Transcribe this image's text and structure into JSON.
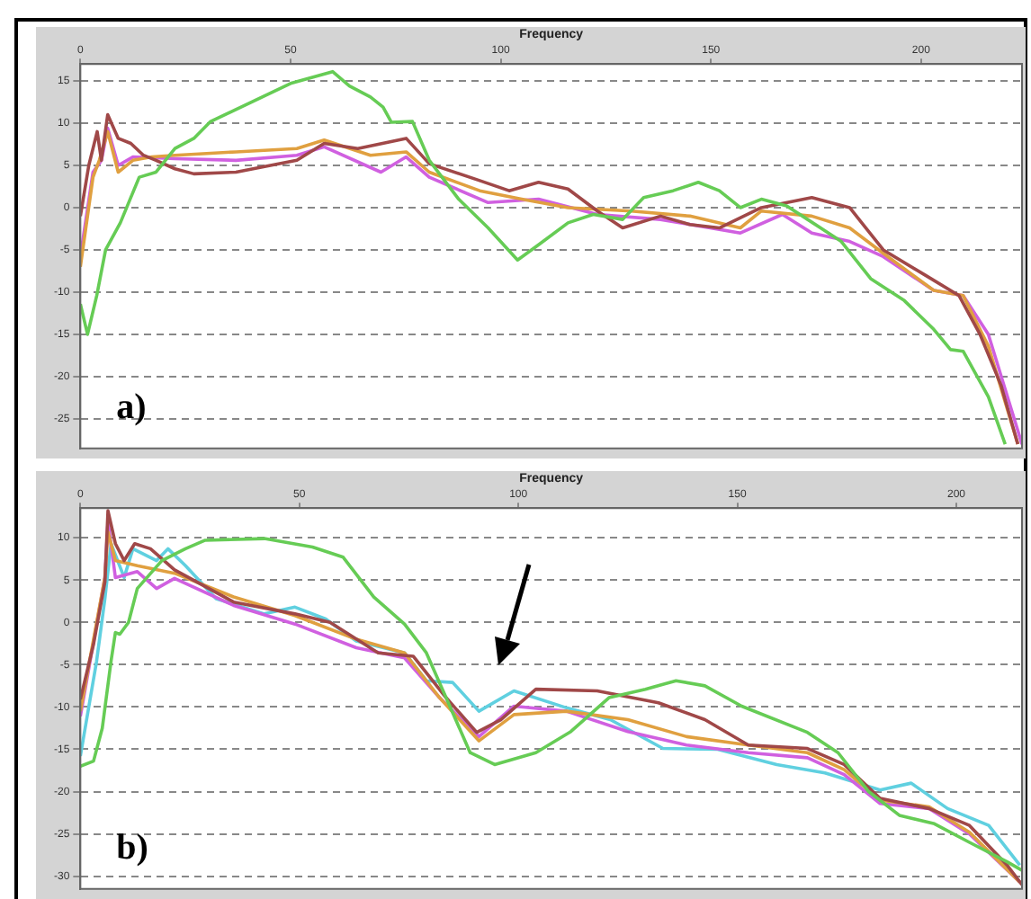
{
  "chart_data": [
    {
      "type": "line",
      "xlabel": "Frequency",
      "xlim": [
        0,
        224
      ],
      "xticks": [
        0,
        50,
        100,
        150,
        200
      ],
      "ylim": [
        -28.5,
        17
      ],
      "yticks": [
        15,
        10,
        5,
        0,
        -5,
        -10,
        -15,
        -20,
        -25
      ],
      "grid": "y",
      "legend": false,
      "marker": "none",
      "line_style": "solid",
      "annotations": [
        "a)"
      ],
      "series": [
        {
          "color": "#66cc55",
          "x": [
            0,
            1.7,
            3.9,
            6,
            9.5,
            14,
            18,
            22.5,
            27,
            31,
            50,
            60,
            64,
            69,
            72,
            74,
            79,
            83,
            90,
            97,
            104,
            109,
            116,
            122,
            129,
            134,
            141,
            147,
            152,
            157,
            162,
            168,
            173,
            181,
            188,
            196,
            203,
            207,
            210,
            216,
            220
          ],
          "values": [
            -11.4,
            -15,
            -10.4,
            -5,
            -1.8,
            3.6,
            4.2,
            7,
            8.2,
            10.2,
            14.7,
            16.1,
            14.4,
            13.1,
            11.9,
            10.1,
            10.2,
            5.6,
            1,
            -2.4,
            -6.2,
            -4.4,
            -1.8,
            -0.8,
            -1.4,
            1.2,
            2,
            3,
            2,
            0,
            1,
            0.2,
            -1.4,
            -4,
            -8.4,
            -11,
            -14.4,
            -16.8,
            -17,
            -22.4,
            -28
          ]
        },
        {
          "color": "#a04848",
          "x": [
            0,
            2,
            4,
            5,
            6.5,
            9,
            12,
            15,
            18,
            22.5,
            27,
            37,
            51.5,
            58,
            66,
            77.5,
            83,
            95,
            102,
            109,
            116,
            123,
            129,
            138,
            145,
            152,
            162,
            174,
            183,
            191,
            201,
            209,
            214,
            219,
            223
          ],
          "values": [
            -1,
            5,
            9,
            5.6,
            11,
            8.2,
            7.6,
            6.2,
            5.6,
            4.6,
            4,
            4.2,
            5.6,
            7.6,
            7,
            8.2,
            5.2,
            3.2,
            2,
            3,
            2.2,
            -0.4,
            -2.4,
            -1,
            -2,
            -2.4,
            0,
            1.2,
            0,
            -5,
            -8,
            -10.4,
            -15,
            -21,
            -28
          ]
        },
        {
          "color": "#e0a040",
          "x": [
            0,
            3,
            4.5,
            6.5,
            9,
            12.5,
            17,
            22.5,
            37,
            51.5,
            58,
            69,
            77.5,
            83,
            95,
            105,
            116,
            131,
            145,
            157,
            162,
            174,
            183,
            191,
            203,
            210,
            216,
            223
          ],
          "values": [
            -7,
            3.6,
            5.6,
            9,
            4.2,
            5.6,
            6,
            6.2,
            6.6,
            7,
            8,
            6.2,
            6.6,
            4.2,
            2,
            1,
            0,
            -0.4,
            -1,
            -2.4,
            -0.4,
            -1,
            -2.4,
            -5.4,
            -9.8,
            -10.4,
            -16.4,
            -28
          ]
        },
        {
          "color": "#d060e0",
          "x": [
            0,
            3,
            5,
            6.5,
            9,
            12.5,
            22.5,
            37,
            51.5,
            58,
            71.5,
            77.5,
            83,
            97,
            109,
            123,
            138,
            157,
            167,
            174,
            183,
            191,
            203,
            210,
            216,
            224
          ],
          "values": [
            -5.8,
            4.2,
            5.6,
            9.4,
            5,
            6,
            5.8,
            5.6,
            6.2,
            7.2,
            4.2,
            6,
            3.6,
            0.6,
            1,
            -0.8,
            -1.4,
            -3,
            -0.8,
            -3,
            -4,
            -5.8,
            -9.8,
            -10.4,
            -15,
            -28
          ]
        }
      ]
    },
    {
      "type": "line",
      "xlabel": "Frequency",
      "xlim": [
        0,
        215
      ],
      "xticks": [
        0,
        50,
        100,
        150,
        200
      ],
      "ylim": [
        -31.5,
        13.5
      ],
      "yticks": [
        10,
        5,
        0,
        -5,
        -10,
        -15,
        -20,
        -25,
        -30
      ],
      "grid": "y",
      "legend": false,
      "marker": "none",
      "line_style": "solid",
      "annotations": [
        "b)"
      ],
      "series": [
        {
          "color": "#66cc55",
          "x": [
            0,
            3,
            5,
            7,
            8,
            9,
            11,
            13,
            18.6,
            24,
            28.5,
            42,
            53,
            60,
            67,
            74,
            79,
            83.5,
            89,
            94.6,
            104,
            112,
            120.7,
            129,
            136,
            142.6,
            151,
            166,
            173,
            180,
            187,
            195,
            203,
            211.6,
            215
          ],
          "values": [
            -17,
            -16.4,
            -12.5,
            -4.6,
            -1.2,
            -1.4,
            0,
            4,
            7.3,
            8.7,
            9.7,
            9.9,
            8.9,
            7.7,
            3,
            -0.2,
            -3.6,
            -8.9,
            -15.4,
            -16.8,
            -15.4,
            -12.9,
            -8.9,
            -7.9,
            -6.9,
            -7.5,
            -9.9,
            -13,
            -15.4,
            -20,
            -22.8,
            -23.8,
            -26,
            -28.3,
            -29.3
          ]
        },
        {
          "color": "#a04848",
          "x": [
            0,
            3,
            5.6,
            6.3,
            8,
            10,
            12.4,
            16,
            21.5,
            35,
            49,
            57,
            68,
            76,
            83.5,
            90.5,
            96,
            104,
            118,
            132,
            142.6,
            152.5,
            166,
            174.4,
            182.6,
            193.8,
            203,
            211.6,
            215
          ],
          "values": [
            -9.1,
            -2.6,
            4.8,
            13.2,
            9.3,
            7.3,
            9.3,
            8.7,
            6.2,
            2.4,
            1,
            0,
            -3.6,
            -4,
            -8.9,
            -13,
            -11.5,
            -7.9,
            -8.1,
            -9.5,
            -11.5,
            -14.5,
            -14.9,
            -16.8,
            -20.8,
            -22,
            -24,
            -28.7,
            -31
          ]
        },
        {
          "color": "#e0a040",
          "x": [
            0,
            5.6,
            6.3,
            8,
            13,
            21.5,
            35,
            49,
            63,
            74,
            82,
            91,
            99,
            111,
            125,
            138.4,
            152.5,
            166,
            174.4,
            182.6,
            193.8,
            203,
            214.5
          ],
          "values": [
            -10.5,
            5.3,
            10.7,
            7.3,
            6.7,
            5.8,
            3,
            0.8,
            -2,
            -3.6,
            -8.9,
            -14,
            -10.9,
            -10.5,
            -11.5,
            -13.5,
            -14.5,
            -15.4,
            -17.4,
            -21,
            -21.8,
            -24.8,
            -30.7
          ]
        },
        {
          "color": "#d060e0",
          "x": [
            0,
            5.6,
            6.3,
            8,
            13,
            17.4,
            21.5,
            35,
            49,
            63,
            74,
            82,
            91,
            99,
            111,
            125,
            138.4,
            152.5,
            166,
            174.4,
            182.6,
            193.8,
            203,
            214.5
          ],
          "values": [
            -11.1,
            5.3,
            11.9,
            5.3,
            6,
            4,
            5.2,
            2,
            -0.2,
            -3,
            -4.2,
            -8.9,
            -13.5,
            -9.9,
            -10.5,
            -12.9,
            -14.5,
            -15.4,
            -16,
            -18,
            -21.4,
            -22,
            -25,
            -30.7
          ]
        },
        {
          "color": "#60d0e0",
          "x": [
            0,
            3.7,
            5.6,
            7,
            10,
            12,
            17.4,
            20,
            24,
            31,
            42,
            49,
            56,
            63,
            74,
            79,
            85,
            91,
            99,
            111,
            121,
            133,
            145.5,
            159,
            170,
            182.6,
            189.7,
            198,
            207.4,
            214.5
          ],
          "values": [
            -15.8,
            -4.6,
            2.8,
            9.3,
            5.3,
            8.7,
            7.3,
            8.7,
            6.7,
            2.8,
            1,
            1.8,
            0.4,
            -2.2,
            -3.6,
            -6.9,
            -7.1,
            -10.5,
            -8.1,
            -10.1,
            -11.5,
            -14.9,
            -15,
            -16.8,
            -17.8,
            -19.8,
            -19,
            -22,
            -24,
            -28.7
          ]
        }
      ]
    }
  ]
}
